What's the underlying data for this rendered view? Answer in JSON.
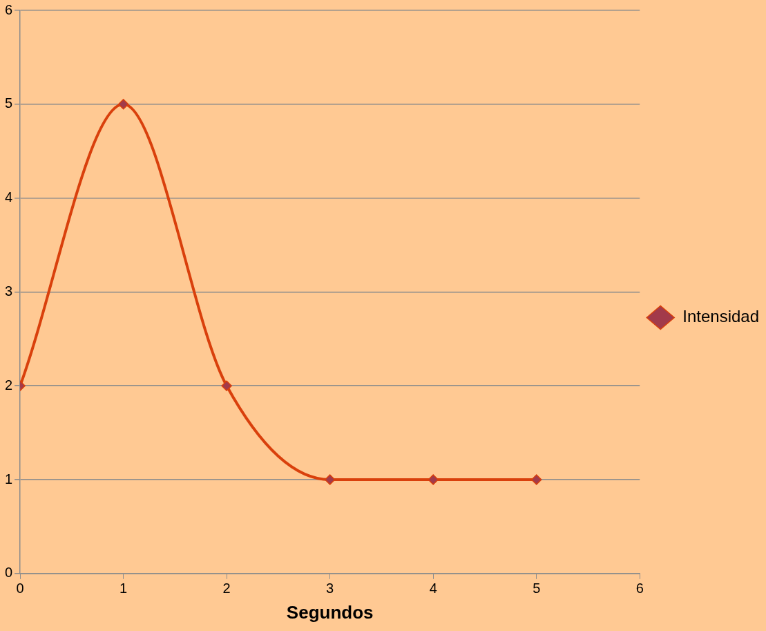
{
  "chart_data": {
    "type": "line",
    "xlabel": "Segundos",
    "x": [
      0,
      1,
      2,
      3,
      4,
      5
    ],
    "series": [
      {
        "name": "Intensidad",
        "color": "#d9400c",
        "values": [
          2,
          5,
          2,
          1,
          1,
          1
        ]
      }
    ],
    "xlim": [
      0,
      6
    ],
    "xticks": [
      0,
      1,
      2,
      3,
      4,
      5,
      6
    ],
    "ylim": [
      0,
      6
    ],
    "yticks": [
      0,
      1,
      2,
      3,
      4,
      5,
      6
    ],
    "grid": "y",
    "legend": "right",
    "marker": "diamond",
    "line_style": "solid"
  }
}
